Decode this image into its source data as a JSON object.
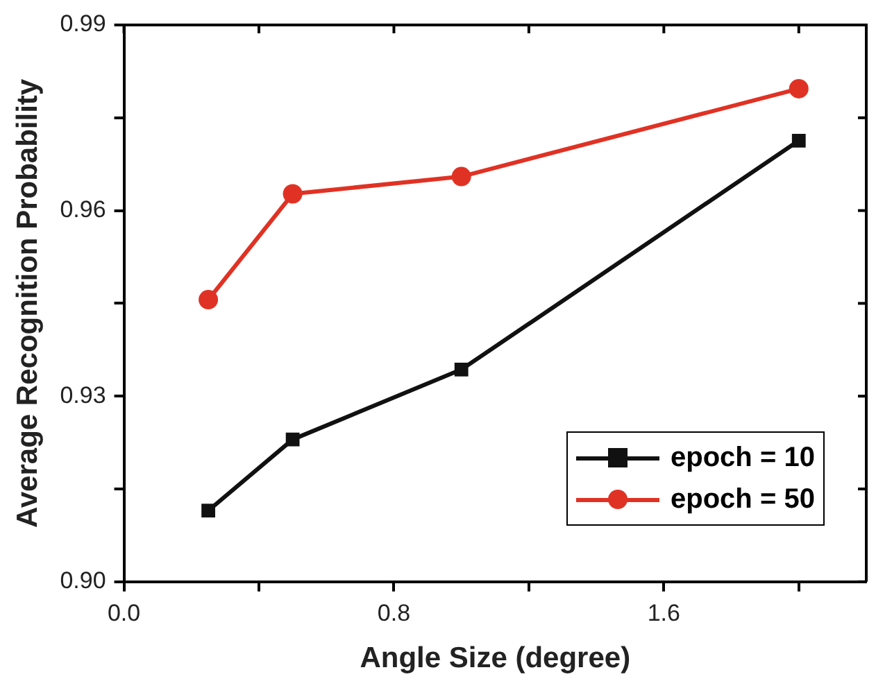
{
  "chart_data": {
    "type": "line",
    "xlabel": "Angle Size (degree)",
    "ylabel": "Average Recognition Probability",
    "xlim": [
      0,
      2.2
    ],
    "xticks": [
      {
        "value": 0,
        "label": "0.0"
      },
      {
        "value": 0.4,
        "label": null
      },
      {
        "value": 0.8,
        "label": "0.8"
      },
      {
        "value": 1.2,
        "label": null
      },
      {
        "value": 1.6,
        "label": "1.6"
      },
      {
        "value": 2.0,
        "label": null
      }
    ],
    "ylim": [
      0.9,
      0.99
    ],
    "yticks": [
      {
        "value": 0.9,
        "label": "0.90"
      },
      {
        "value": 0.915,
        "label": null
      },
      {
        "value": 0.93,
        "label": "0.93"
      },
      {
        "value": 0.945,
        "label": null
      },
      {
        "value": 0.96,
        "label": "0.96"
      },
      {
        "value": 0.975,
        "label": null
      },
      {
        "value": 0.99,
        "label": "0.99"
      }
    ],
    "x": [
      0.25,
      0.5,
      1.0,
      2.0
    ],
    "series": [
      {
        "name": "epoch = 10",
        "color": "#111111",
        "marker": "square",
        "values": [
          0.9115,
          0.923,
          0.9343,
          0.9713
        ]
      },
      {
        "name": "epoch = 50",
        "color": "#e03224",
        "marker": "circle",
        "values": [
          0.9456,
          0.9627,
          0.9655,
          0.9797
        ]
      }
    ],
    "legend": "bottom right",
    "grid": false,
    "line_style": "solid"
  }
}
